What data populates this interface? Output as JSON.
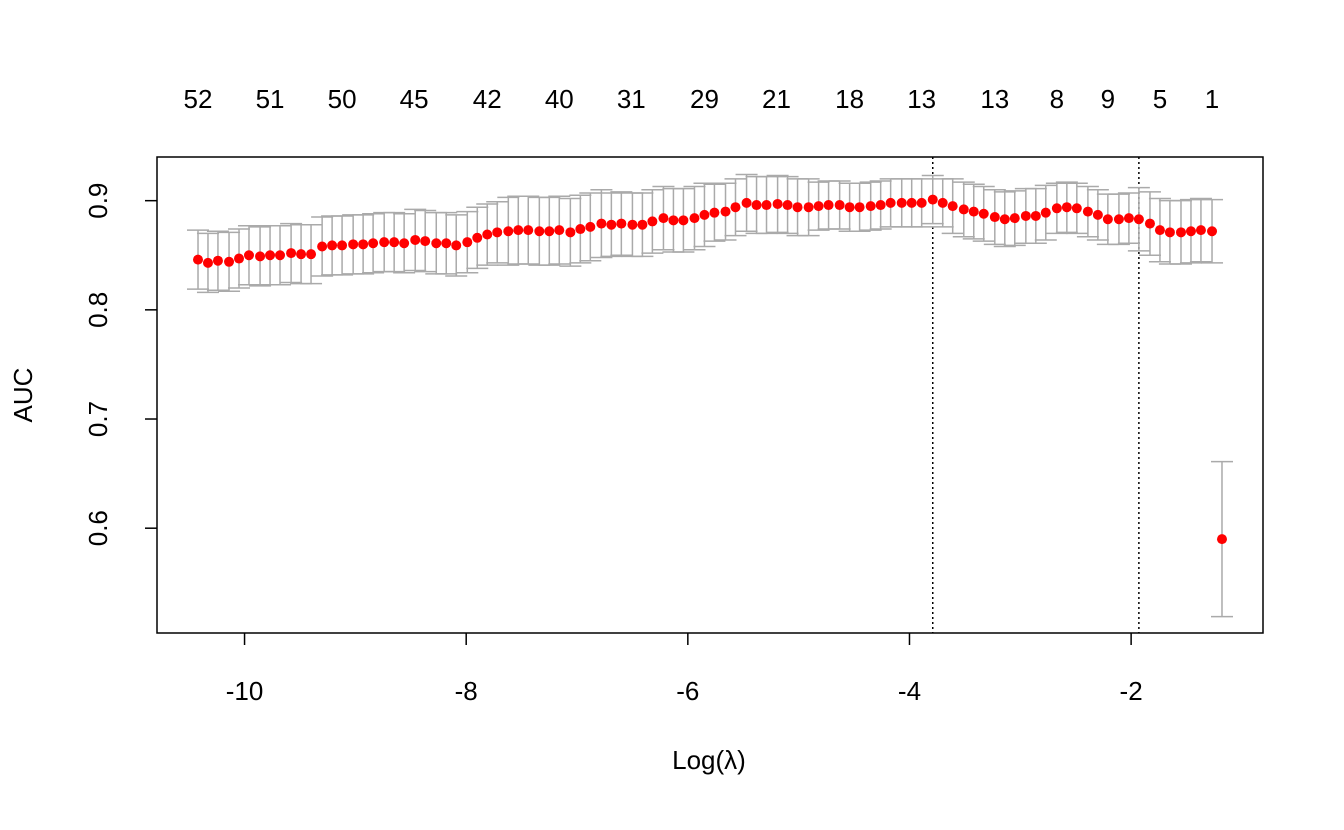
{
  "chart_data": {
    "type": "errorbar",
    "xlabel": "Log(λ)",
    "ylabel": "AUC",
    "x": [
      -10.42,
      -10.33,
      -10.24,
      -10.14,
      -10.05,
      -9.96,
      -9.86,
      -9.77,
      -9.68,
      -9.58,
      -9.49,
      -9.4,
      -9.3,
      -9.21,
      -9.12,
      -9.02,
      -8.93,
      -8.84,
      -8.74,
      -8.65,
      -8.56,
      -8.46,
      -8.37,
      -8.27,
      -8.18,
      -8.09,
      -7.99,
      -7.9,
      -7.81,
      -7.72,
      -7.62,
      -7.53,
      -7.44,
      -7.34,
      -7.25,
      -7.16,
      -7.06,
      -6.97,
      -6.88,
      -6.78,
      -6.69,
      -6.6,
      -6.5,
      -6.41,
      -6.32,
      -6.22,
      -6.13,
      -6.04,
      -5.94,
      -5.85,
      -5.76,
      -5.66,
      -5.57,
      -5.47,
      -5.38,
      -5.29,
      -5.19,
      -5.1,
      -5.01,
      -4.91,
      -4.82,
      -4.73,
      -4.63,
      -4.54,
      -4.45,
      -4.35,
      -4.26,
      -4.17,
      -4.07,
      -3.98,
      -3.89,
      -3.79,
      -3.7,
      -3.61,
      -3.51,
      -3.42,
      -3.33,
      -3.23,
      -3.14,
      -3.05,
      -2.95,
      -2.86,
      -2.77,
      -2.67,
      -2.58,
      -2.49,
      -2.39,
      -2.3,
      -2.21,
      -2.11,
      -2.02,
      -1.93,
      -1.83,
      -1.74,
      -1.65,
      -1.55,
      -1.46,
      -1.37,
      -1.27,
      -1.18
    ],
    "values": [
      0.846,
      0.843,
      0.845,
      0.844,
      0.847,
      0.85,
      0.849,
      0.85,
      0.85,
      0.852,
      0.851,
      0.851,
      0.858,
      0.859,
      0.859,
      0.86,
      0.86,
      0.861,
      0.862,
      0.862,
      0.861,
      0.864,
      0.863,
      0.861,
      0.861,
      0.859,
      0.862,
      0.866,
      0.869,
      0.871,
      0.872,
      0.873,
      0.873,
      0.872,
      0.872,
      0.873,
      0.871,
      0.874,
      0.876,
      0.879,
      0.878,
      0.879,
      0.878,
      0.878,
      0.881,
      0.884,
      0.882,
      0.882,
      0.884,
      0.887,
      0.889,
      0.89,
      0.894,
      0.898,
      0.896,
      0.896,
      0.897,
      0.896,
      0.894,
      0.894,
      0.895,
      0.896,
      0.896,
      0.894,
      0.894,
      0.895,
      0.896,
      0.898,
      0.898,
      0.898,
      0.898,
      0.901,
      0.898,
      0.895,
      0.892,
      0.89,
      0.888,
      0.885,
      0.883,
      0.884,
      0.886,
      0.886,
      0.889,
      0.893,
      0.894,
      0.893,
      0.89,
      0.887,
      0.883,
      0.883,
      0.884,
      0.883,
      0.879,
      0.873,
      0.871,
      0.871,
      0.872,
      0.873,
      0.872,
      0.59
    ],
    "errors": [
      0.027,
      0.027,
      0.027,
      0.027,
      0.027,
      0.027,
      0.027,
      0.027,
      0.027,
      0.027,
      0.027,
      0.027,
      0.027,
      0.027,
      0.027,
      0.027,
      0.027,
      0.027,
      0.027,
      0.027,
      0.027,
      0.028,
      0.028,
      0.028,
      0.028,
      0.028,
      0.028,
      0.028,
      0.028,
      0.028,
      0.031,
      0.031,
      0.031,
      0.031,
      0.031,
      0.031,
      0.031,
      0.031,
      0.031,
      0.031,
      0.029,
      0.029,
      0.029,
      0.029,
      0.029,
      0.029,
      0.029,
      0.029,
      0.029,
      0.029,
      0.026,
      0.026,
      0.026,
      0.026,
      0.026,
      0.026,
      0.026,
      0.026,
      0.026,
      0.026,
      0.022,
      0.022,
      0.022,
      0.022,
      0.022,
      0.022,
      0.022,
      0.022,
      0.022,
      0.022,
      0.022,
      0.022,
      0.022,
      0.025,
      0.025,
      0.025,
      0.025,
      0.025,
      0.025,
      0.025,
      0.025,
      0.025,
      0.025,
      0.023,
      0.023,
      0.023,
      0.023,
      0.023,
      0.023,
      0.023,
      0.023,
      0.029,
      0.029,
      0.029,
      0.029,
      0.029,
      0.029,
      0.029,
      0.029,
      0.071
    ],
    "color": "#ff0000",
    "errorbar_color": "#aaaaaa",
    "xlim": [
      -10.79,
      -0.81
    ],
    "ylim": [
      0.504,
      0.94
    ],
    "xticks": [
      -10,
      -8,
      -6,
      -4,
      -2
    ],
    "yticks": [
      0.6,
      0.7,
      0.8,
      0.9
    ],
    "top_ticks": [
      {
        "value": -10.42,
        "label": "52"
      },
      {
        "value": -9.77,
        "label": "51"
      },
      {
        "value": -9.12,
        "label": "50"
      },
      {
        "value": -8.47,
        "label": "45"
      },
      {
        "value": -7.81,
        "label": "42"
      },
      {
        "value": -7.16,
        "label": "40"
      },
      {
        "value": -6.51,
        "label": "31"
      },
      {
        "value": -5.85,
        "label": "29"
      },
      {
        "value": -5.2,
        "label": "21"
      },
      {
        "value": -4.54,
        "label": "18"
      },
      {
        "value": -3.89,
        "label": "13"
      },
      {
        "value": -3.23,
        "label": "13"
      },
      {
        "value": -2.67,
        "label": "8"
      },
      {
        "value": -2.21,
        "label": "9"
      },
      {
        "value": -1.74,
        "label": "5"
      },
      {
        "value": -1.27,
        "label": "1"
      }
    ],
    "vlines": [
      -3.79,
      -1.93
    ]
  }
}
